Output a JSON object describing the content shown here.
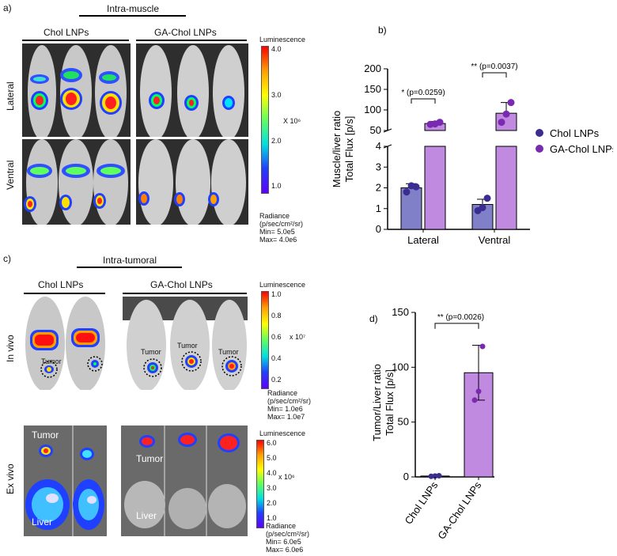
{
  "panel_a": {
    "letter": "a)",
    "title": "Intra-muscle",
    "group1": "Chol LNPs",
    "group2": "GA-Chol LNPs",
    "row1": "Lateral",
    "row2": "Ventral",
    "scale_title": "Luminescence",
    "scale_ticks": [
      "4.0",
      "3.0",
      "2.0",
      "1.0"
    ],
    "scale_multiplier": "X 10⁶",
    "radiance_line1": "Radiance",
    "radiance_line2": "(p/sec/cm²/sr)",
    "min": "Min= 5.0e5",
    "max": "Max= 4.0e6"
  },
  "panel_c": {
    "letter": "c)",
    "title": "Intra-tumoral",
    "group1": "Chol LNPs",
    "group2": "GA-Chol LNPs",
    "row1": "In vivo",
    "row2": "Ex vivo",
    "tumor_label": "Tumor",
    "liver_label": "Liver",
    "scale1_title": "Luminescence",
    "scale1_ticks": [
      "1.0",
      "0.8",
      "0.6",
      "0.4",
      "0.2"
    ],
    "scale1_multiplier": "x 10⁷",
    "scale1_radiance1": "Radiance",
    "scale1_radiance2": "(p/sec/cm²/sr)",
    "scale1_min": "Min= 1.0e6",
    "scale1_max": "Max= 1.0e7",
    "scale2_title": "Luminescence",
    "scale2_ticks": [
      "6.0",
      "5.0",
      "4.0",
      "3.0",
      "2.0",
      "1.0"
    ],
    "scale2_multiplier": "x 10⁶",
    "scale2_radiance1": "Radiance",
    "scale2_radiance2": "(p/sec/cm²/sr)",
    "scale2_min": "Min= 6.0e5",
    "scale2_max": "Max= 6.0e6"
  },
  "chart_data": [
    {
      "id": "b",
      "letter": "b)",
      "type": "bar",
      "categories": [
        "Lateral",
        "Ventral"
      ],
      "ylabel_line1": "Muscle/liver ratio",
      "ylabel_line2": "Total Flux [p/s]",
      "y_broken": true,
      "ylim_lower": [
        0,
        4
      ],
      "ylim_upper": [
        50,
        200
      ],
      "yticks_lower": [
        "0",
        "1",
        "2",
        "3",
        "4"
      ],
      "yticks_upper": [
        "50",
        "100",
        "150",
        "200"
      ],
      "series": [
        {
          "name": "Chol LNPs",
          "color": "#8080c8",
          "dot_color": "#3a2d8f",
          "values": [
            2.0,
            1.2
          ],
          "errors": [
            0.2,
            0.25
          ],
          "points": [
            [
              1.8,
              2.1,
              2.05
            ],
            [
              0.9,
              1.05,
              1.5
            ]
          ]
        },
        {
          "name": "GA-Chol LNPs",
          "color": "#c08ae0",
          "dot_color": "#7a2ab0",
          "values": [
            67,
            92
          ],
          "errors": [
            5,
            26
          ],
          "points": [
            [
              65,
              66,
              70
            ],
            [
              70,
              90,
              118
            ]
          ]
        }
      ],
      "annotations": [
        {
          "category": "Lateral",
          "text": "* (p=0.0259)"
        },
        {
          "category": "Ventral",
          "text": "** (p=0.0037)"
        }
      ],
      "legend": "right"
    },
    {
      "id": "d",
      "letter": "d)",
      "type": "bar",
      "categories": [
        "Chol LNPs",
        "GA-Chol LNPs"
      ],
      "ylabel_line1": "Tumor/Liver ratio",
      "ylabel_line2": "Total Flux [p/s]",
      "ylim": [
        0,
        150
      ],
      "yticks": [
        "0",
        "50",
        "100",
        "150"
      ],
      "values": [
        0.8,
        95
      ],
      "errors": [
        0.3,
        25
      ],
      "colors": [
        "#8080c8",
        "#c08ae0"
      ],
      "dot_colors": [
        "#3a2d8f",
        "#7a2ab0"
      ],
      "points": [
        [
          0.5,
          0.8,
          1.1
        ],
        [
          70,
          78,
          119
        ]
      ],
      "annotation": "** (p=0.0026)"
    }
  ]
}
